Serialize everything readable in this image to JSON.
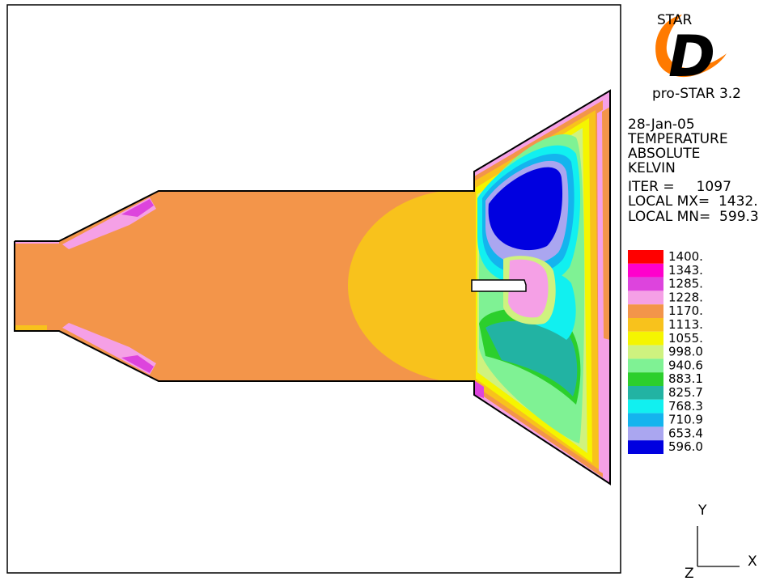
{
  "logo": {
    "brand": "STAR",
    "letter": "D",
    "product": "pro-STAR 3.2"
  },
  "info": {
    "date": "28-Jan-05",
    "quantity": "TEMPERATURE",
    "mode": "ABSOLUTE",
    "unit": "KELVIN",
    "iter": "ITER =     1097",
    "local_max": "LOCAL MX=  1432.",
    "local_min": "LOCAL MN=  599.3"
  },
  "legend": [
    {
      "label": "1400.",
      "color": "#ff0000"
    },
    {
      "label": "1343.",
      "color": "#ff00cc"
    },
    {
      "label": "1285.",
      "color": "#dd44dd"
    },
    {
      "label": "1228.",
      "color": "#f5a0e6"
    },
    {
      "label": "1170.",
      "color": "#f3954a"
    },
    {
      "label": "1113.",
      "color": "#f8c21c"
    },
    {
      "label": "1055.",
      "color": "#f5f500"
    },
    {
      "label": "998.0",
      "color": "#cff27f"
    },
    {
      "label": "940.6",
      "color": "#7ff294"
    },
    {
      "label": "883.1",
      "color": "#2ccf2c"
    },
    {
      "label": "825.7",
      "color": "#22b3a3"
    },
    {
      "label": "768.3",
      "color": "#11f0f0"
    },
    {
      "label": "710.9",
      "color": "#14b4ee"
    },
    {
      "label": "653.4",
      "color": "#aaa6f0"
    },
    {
      "label": "596.0",
      "color": "#0000e0"
    }
  ],
  "axes": {
    "y": "Y",
    "x": "X",
    "z": "Z"
  }
}
